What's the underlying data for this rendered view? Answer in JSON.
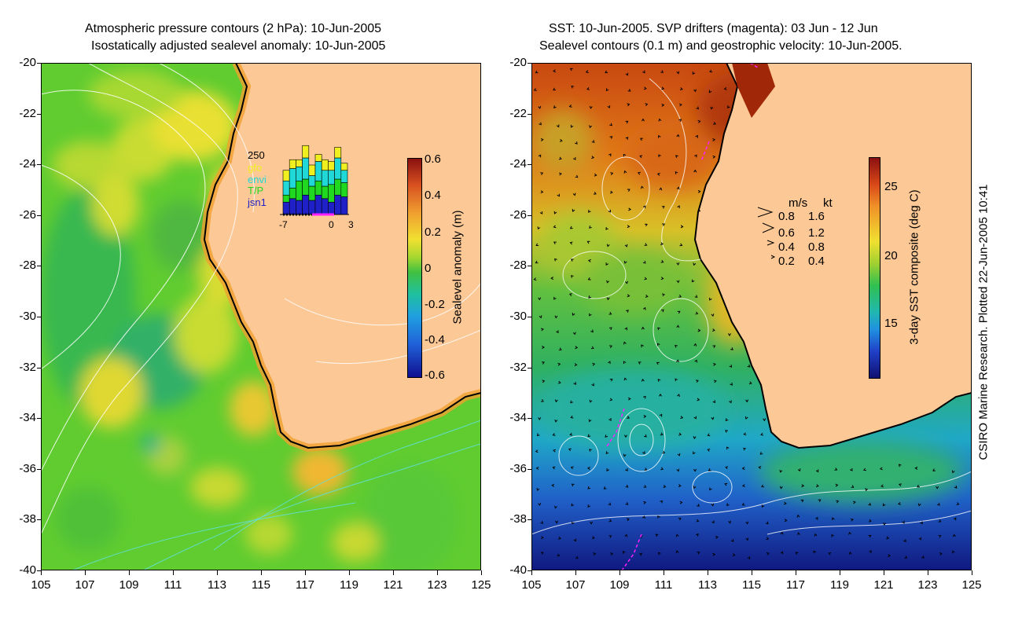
{
  "left_panel": {
    "title_line1": "Atmospheric pressure contours (2 hPa): 10-Jun-2005",
    "title_line2": "Isostatically adjusted sealevel anomaly: 10-Jun-2005",
    "colorbar": {
      "label": "Sealevel anomaly (m)",
      "ticks": [
        "0.6",
        "0.4",
        "0.2",
        "0",
        "-0.2",
        "-0.4",
        "-0.6"
      ]
    },
    "inset": {
      "y_max_label": "250",
      "legend": [
        "gfo",
        "envi",
        "T/P",
        "jsn1"
      ],
      "legend_colors": [
        "#f0f020",
        "#20d8d8",
        "#20d820",
        "#2020c8"
      ],
      "x_labels": [
        "-7",
        "0",
        "3"
      ],
      "stacks": [
        [
          30,
          40,
          20,
          35
        ],
        [
          25,
          55,
          30,
          45
        ],
        [
          20,
          40,
          55,
          40
        ],
        [
          35,
          60,
          45,
          55
        ],
        [
          30,
          30,
          40,
          40
        ],
        [
          20,
          55,
          40,
          55
        ],
        [
          30,
          45,
          35,
          45
        ],
        [
          25,
          40,
          50,
          35
        ],
        [
          30,
          60,
          45,
          55
        ],
        [
          20,
          35,
          40,
          50
        ]
      ]
    }
  },
  "right_panel": {
    "title_line1": "SST: 10-Jun-2005. SVP drifters (magenta): 03 Jun - 12 Jun",
    "title_line2": "Sealevel contours (0.1 m) and geostrophic velocity: 10-Jun-2005.",
    "colorbar": {
      "label": "3-day SST composite (deg C)",
      "ticks": [
        "25",
        "20",
        "15"
      ]
    },
    "velocity_legend": {
      "header_ms": "m/s",
      "header_kt": "kt",
      "rows": [
        {
          "ms": "0.8",
          "kt": "1.6"
        },
        {
          "ms": "0.6",
          "kt": "1.2"
        },
        {
          "ms": "0.4",
          "kt": "0.8"
        },
        {
          "ms": "0.2",
          "kt": "0.4"
        }
      ]
    }
  },
  "axes": {
    "y_ticks": [
      "-20",
      "-22",
      "-24",
      "-26",
      "-28",
      "-30",
      "-32",
      "-34",
      "-36",
      "-38",
      "-40"
    ],
    "x_ticks": [
      "105",
      "107",
      "109",
      "111",
      "113",
      "115",
      "117",
      "119",
      "121",
      "123",
      "125"
    ]
  },
  "credit": "CSIRO Marine Research. Plotted 22-Jun-2005 10:41",
  "colors": {
    "land": "#fcc896",
    "coast": "#000000",
    "drifter": "#ff20ff",
    "contour": "#ffffff"
  }
}
